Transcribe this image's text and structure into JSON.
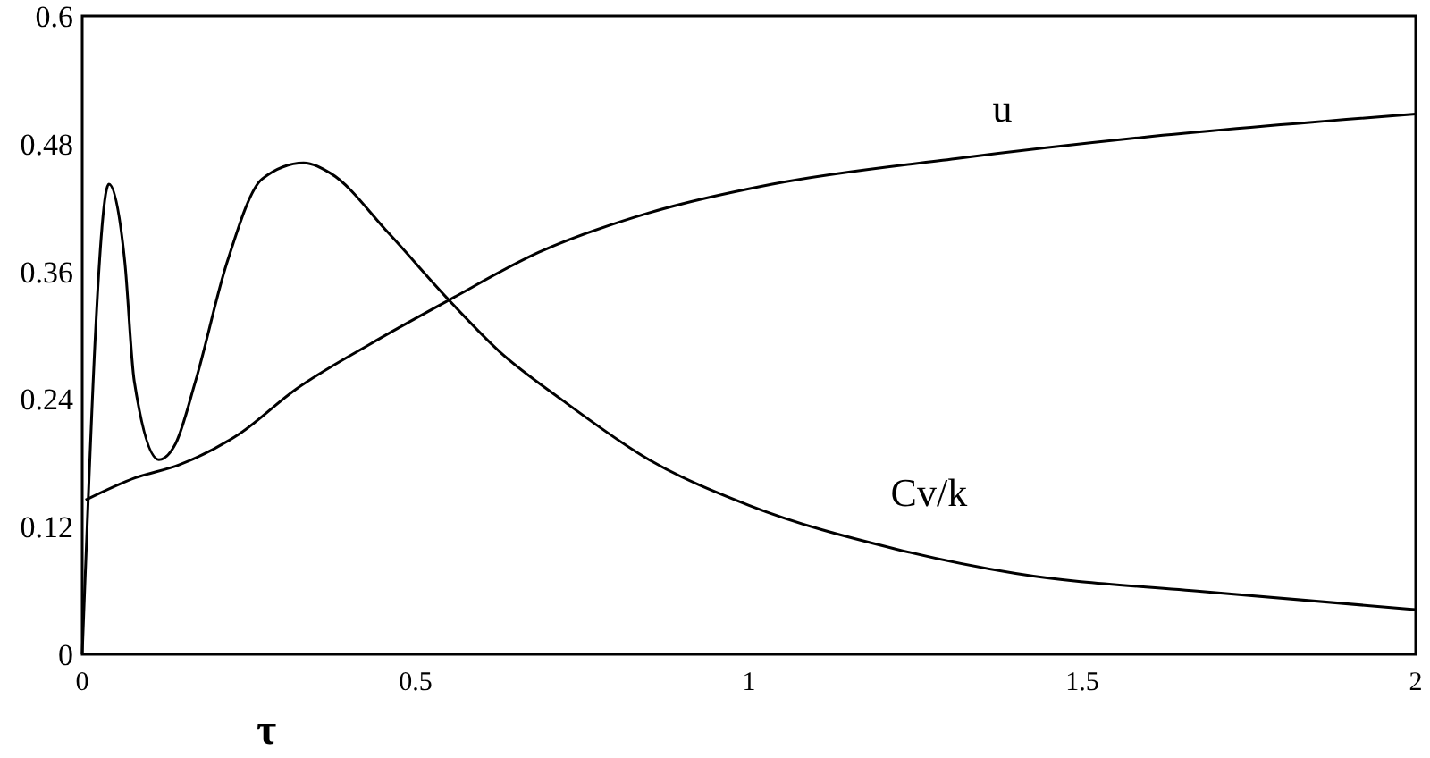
{
  "chart_data": {
    "type": "line",
    "xlabel": "τ",
    "xlim": [
      0,
      2
    ],
    "xticks": [
      0,
      0.5,
      1,
      1.5,
      2
    ],
    "ylim": [
      0,
      0.6
    ],
    "yticks": [
      0,
      0.12,
      0.24,
      0.36,
      0.48,
      0.6
    ],
    "grid": false,
    "marker": "none",
    "line_style": "solid",
    "series": [
      {
        "name": "u",
        "color": "#000000",
        "x": [
          0.005,
          0.08,
          0.145,
          0.235,
          0.32,
          0.43,
          0.55,
          0.685,
          0.85,
          1.035,
          1.31,
          1.59,
          2.0
        ],
        "values": [
          0.145,
          0.166,
          0.178,
          0.207,
          0.249,
          0.291,
          0.333,
          0.378,
          0.415,
          0.442,
          0.466,
          0.486,
          0.508
        ]
      },
      {
        "name": "Cv/k",
        "color": "#000000",
        "x": [
          0,
          0.04,
          0.064,
          0.078,
          0.115,
          0.14,
          0.17,
          0.217,
          0.27,
          0.332,
          0.373,
          0.458,
          0.547,
          0.627,
          0.72,
          0.85,
          1.0,
          1.22,
          1.4,
          1.68,
          2.0
        ],
        "values": [
          0,
          0.442,
          0.368,
          0.257,
          0.183,
          0.198,
          0.257,
          0.368,
          0.447,
          0.462,
          0.452,
          0.397,
          0.335,
          0.284,
          0.239,
          0.183,
          0.14,
          0.099,
          0.076,
          0.059,
          0.042
        ]
      }
    ]
  }
}
